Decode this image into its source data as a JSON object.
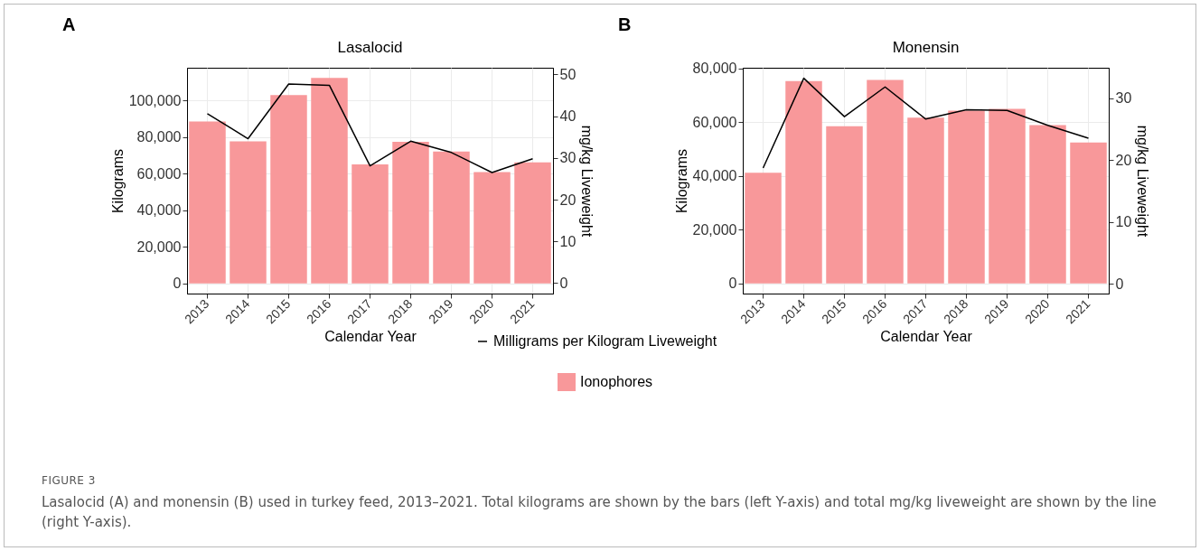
{
  "chart_data": [
    {
      "type": "bar",
      "title": "Lasalocid",
      "xlabel": "Calendar Year",
      "ylabel": "Kilograms",
      "y2label": "mg/kg Liveweight",
      "categories": [
        "2013",
        "2014",
        "2015",
        "2016",
        "2017",
        "2018",
        "2019",
        "2020",
        "2021"
      ],
      "series": [
        {
          "name": "Ionophores",
          "color": "#f8989a",
          "values": [
            88600,
            77700,
            103000,
            112400,
            65100,
            77500,
            72100,
            60900,
            66200
          ]
        },
        {
          "name": "Milligrams per Kilogram Liveweight",
          "type": "line",
          "axis": "y2",
          "color": "#000000",
          "values": [
            40.6,
            34.6,
            47.7,
            47.4,
            28.1,
            34.0,
            31.3,
            26.5,
            29.8
          ]
        }
      ],
      "ylim": [
        -5600,
        118000
      ],
      "yticks": [
        0,
        {
          "value": 20000,
          "label": "20,000"
        },
        {
          "value": 40000,
          "label": "40,000"
        },
        {
          "value": 60000,
          "label": "60,000"
        },
        {
          "value": 80000,
          "label": "80,000"
        },
        {
          "value": 100000,
          "label": "100,000"
        }
      ],
      "y2lim": [
        -2.5,
        51.6
      ],
      "y2ticks": [
        0,
        10,
        20,
        30,
        40,
        50
      ],
      "grid": true,
      "legend": "bottom",
      "annotations": [
        "A"
      ]
    },
    {
      "type": "bar",
      "title": "Monensin",
      "xlabel": "Calendar Year",
      "ylabel": "Kilograms",
      "y2label": "mg/kg Liveweight",
      "categories": [
        "2013",
        "2014",
        "2015",
        "2016",
        "2017",
        "2018",
        "2019",
        "2020",
        "2021"
      ],
      "series": [
        {
          "name": "Ionophores",
          "color": "#f8989a",
          "values": [
            41200,
            75300,
            58500,
            75800,
            61700,
            64300,
            65000,
            58900,
            52500
          ]
        },
        {
          "name": "Milligrams per Kilogram Liveweight",
          "type": "line",
          "axis": "y2",
          "color": "#000000",
          "values": [
            18.7,
            33.2,
            27.0,
            31.8,
            26.6,
            28.1,
            28.0,
            25.6,
            23.5
          ]
        }
      ],
      "ylim": [
        -3800,
        80300
      ],
      "yticks": [
        0,
        {
          "value": 20000,
          "label": "20,000"
        },
        {
          "value": 40000,
          "label": "40,000"
        },
        {
          "value": 60000,
          "label": "60,000"
        },
        {
          "value": 80000,
          "label": "80,000"
        }
      ],
      "y2lim": [
        -1.6,
        34.9
      ],
      "y2ticks": [
        0,
        10,
        20,
        30
      ],
      "grid": true,
      "legend": "bottom",
      "annotations": [
        "B",
        "FIGURE 3",
        "Lasalocid (A) and monensin (B) used in turkey feed, 2013–2021. Total kilograms are shown by the bars (left Y-axis) and total mg/kg liveweight are shown by the line (right Y-axis)."
      ]
    }
  ]
}
